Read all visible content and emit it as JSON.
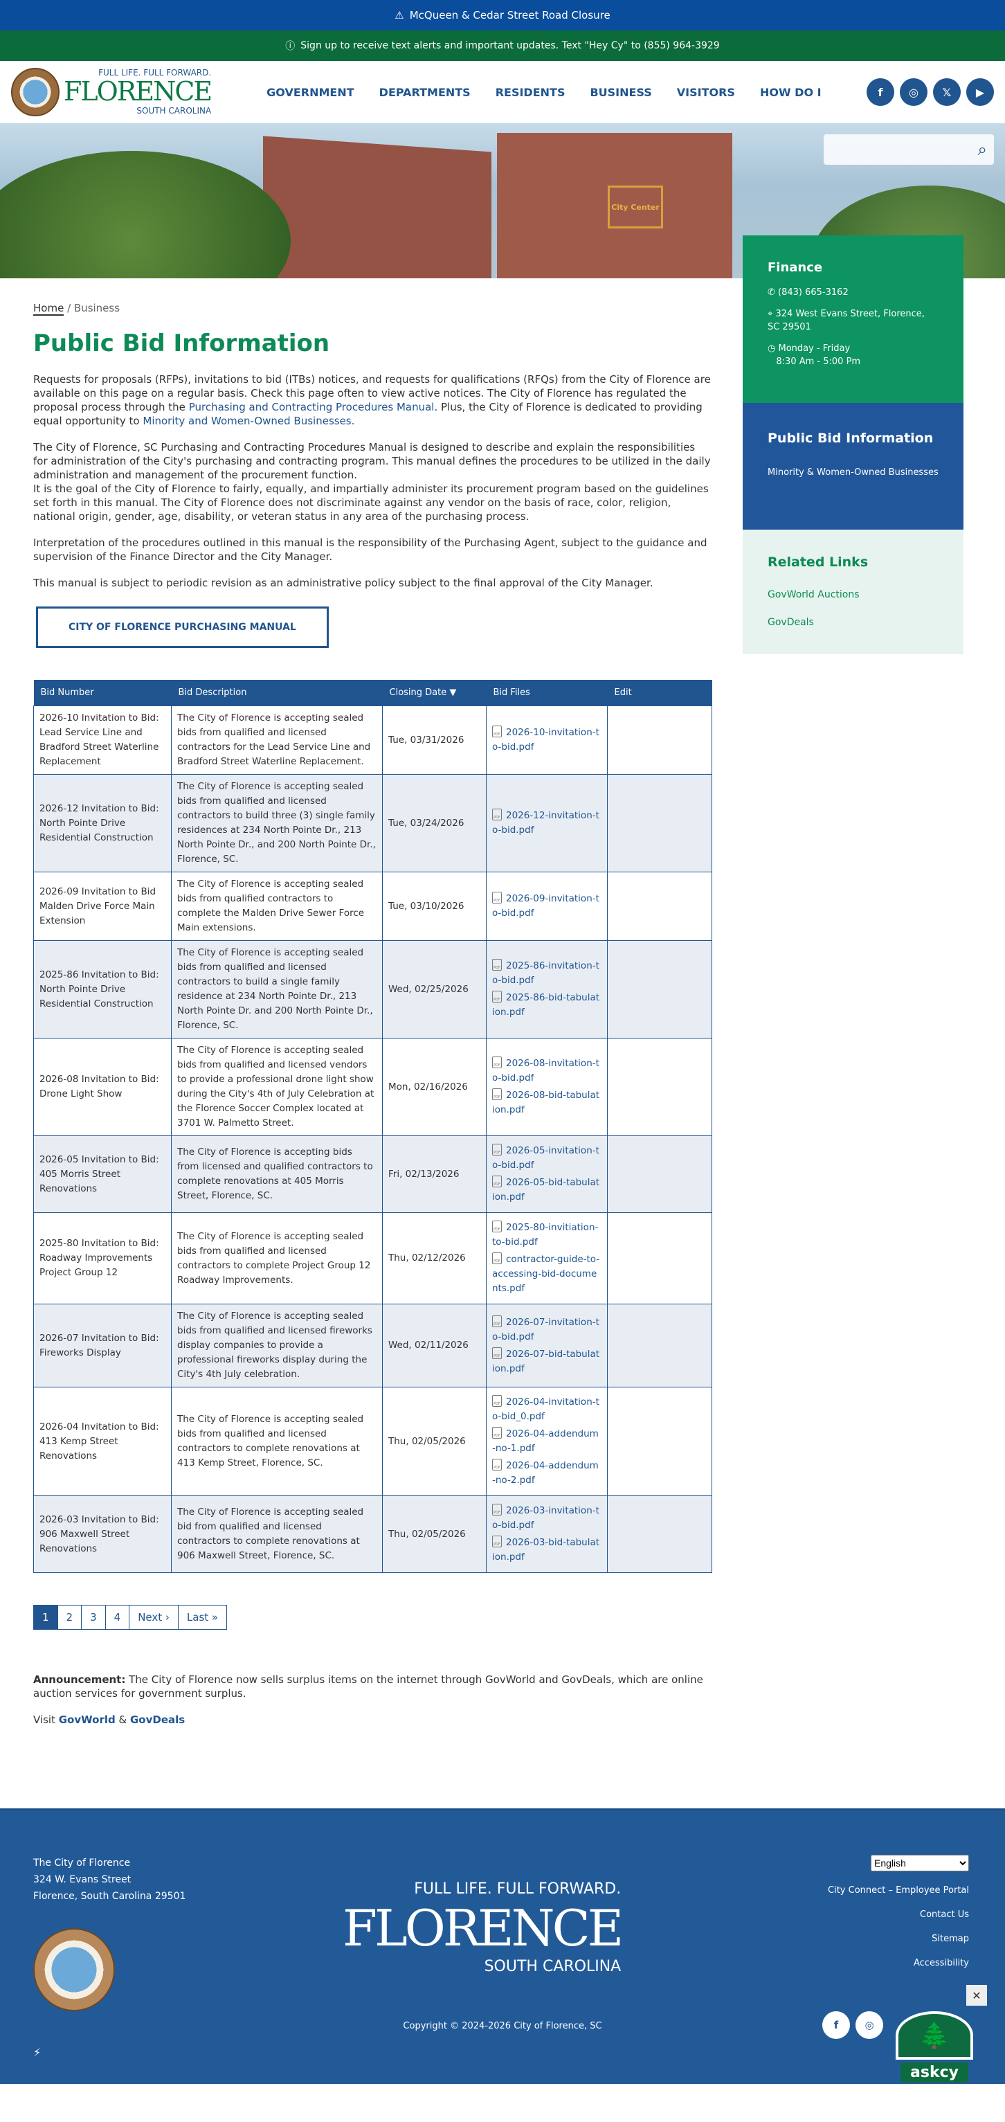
{
  "alerts": {
    "road": "McQueen & Cedar Street Road Closure",
    "text": "Sign up to receive text alerts and important updates. Text \"Hey Cy\" to (855) 964-3929"
  },
  "logo": {
    "tagline": "FULL LIFE. FULL FORWARD.",
    "name": "FLORENCE",
    "state": "SOUTH CAROLINA"
  },
  "nav": [
    "GOVERNMENT",
    "DEPARTMENTS",
    "RESIDENTS",
    "BUSINESS",
    "VISITORS",
    "HOW DO I"
  ],
  "social": {
    "facebook": "f",
    "instagram": "◎",
    "x": "𝕏",
    "youtube": "▶"
  },
  "hero": {
    "sign": "City Center"
  },
  "breadcrumb": {
    "home": "Home",
    "current": "Business"
  },
  "title": "Public Bid Information",
  "intro": {
    "p1a": "Requests for proposals (RFPs), invitations to bid (ITBs) notices, and requests for qualifications (RFQs) from the City of Florence are available on this page on a regular basis. Check this page often to view active notices. The City of Florence has regulated the proposal process through the ",
    "link1": "Purchasing and Contracting Procedures Manual",
    "p1b": ". Plus, the City of Florence is dedicated to providing equal opportunity to ",
    "link2": "Minority and Women-Owned Businesses.",
    "p2": "The City of Florence, SC Purchasing and Contracting Procedures Manual is designed to describe and explain the responsibilities for administration of the City's purchasing and contracting program.  This manual defines the procedures to be utilized in the daily administration and management of the procurement function.",
    "p3": "It is the goal of the City of Florence to fairly, equally, and impartially administer its procurement program based on the guidelines set forth in this manual.  The City of Florence does not discriminate against any vendor on the basis of race, color, religion, national origin, gender, age, disability, or veteran status in any area of the purchasing process.",
    "p4": "Interpretation of the procedures outlined in this manual is the responsibility of the Purchasing Agent, subject to the guidance and supervision of the Finance Director and the City Manager.",
    "p5": "This manual is subject to periodic revision as an administrative policy subject to the final approval of the City Manager."
  },
  "manual_button": "CITY OF FLORENCE PURCHASING MANUAL",
  "table": {
    "headers": [
      "Bid Number",
      "Bid Description",
      "Closing Date ▼",
      "Bid Files",
      "Edit"
    ],
    "rows": [
      {
        "number": "2026-10 Invitation to Bid: Lead Service Line and Bradford Street Waterline Replacement",
        "desc": "The City of Florence is accepting sealed bids from qualified and licensed contractors for the Lead Service Line and Bradford Street Waterline Replacement.",
        "date": "Tue, 03/31/2026",
        "files": [
          "2026-10-invitation-to-bid.pdf"
        ]
      },
      {
        "number": "2026-12 Invitation to Bid: North Pointe Drive Residential Construction",
        "desc": "The City of Florence is accepting sealed bids from qualified and licensed contractors to build three (3) single family residences at 234 North Pointe Dr., 213 North Pointe Dr., and 200 North Pointe Dr., Florence, SC.",
        "date": "Tue, 03/24/2026",
        "files": [
          "2026-12-invitation-to-bid.pdf"
        ]
      },
      {
        "number": "2026-09 Invitation to Bid Malden Drive Force Main Extension",
        "desc": "The City of Florence is accepting sealed bids from qualified contractors to complete the Malden Drive Sewer Force Main extensions.",
        "date": "Tue, 03/10/2026",
        "files": [
          "2026-09-invitation-to-bid.pdf"
        ]
      },
      {
        "number": "2025-86 Invitation to Bid: North Pointe Drive Residential Construction",
        "desc": "The City of Florence is accepting sealed bids from qualified and licensed contractors to build a single family residence at 234 North Pointe Dr., 213 North Pointe Dr. and 200 North Pointe Dr., Florence, SC.",
        "date": "Wed, 02/25/2026",
        "files": [
          "2025-86-invitation-to-bid.pdf",
          "2025-86-bid-tabulation.pdf"
        ]
      },
      {
        "number": "2026-08 Invitation to Bid: Drone Light Show",
        "desc": "The City of Florence is accepting sealed bids from qualified and licensed vendors to provide a professional drone light show during the City's 4th of July Celebration at the Florence Soccer Complex located at 3701 W. Palmetto Street.",
        "date": "Mon, 02/16/2026",
        "files": [
          "2026-08-invitation-to-bid.pdf",
          "2026-08-bid-tabulation.pdf"
        ]
      },
      {
        "number": "2026-05 Invitation to Bid: 405 Morris Street Renovations",
        "desc": "The City of Florence is accepting bids from licensed and qualified contractors to complete renovations at 405 Morris Street, Florence, SC.",
        "date": "Fri, 02/13/2026",
        "files": [
          "2026-05-invitation-to-bid.pdf",
          "2026-05-bid-tabulation.pdf"
        ]
      },
      {
        "number": "2025-80 Invitation to Bid: Roadway Improvements Project Group 12",
        "desc": "The City of Florence is accepting sealed bids from qualified and licensed contractors to  complete Project Group 12 Roadway Improvements.",
        "date": "Thu, 02/12/2026",
        "files": [
          "2025-80-invitiation-to-bid.pdf",
          "contractor-guide-to-accessing-bid-documents.pdf"
        ]
      },
      {
        "number": "2026-07 Invitation to Bid: Fireworks Display",
        "desc": "The City of Florence is accepting sealed bids from qualified and licensed fireworks display companies to provide a professional fireworks display during the City's 4th July celebration.",
        "date": "Wed, 02/11/2026",
        "files": [
          "2026-07-invitation-to-bid.pdf",
          "2026-07-bid-tabulation.pdf"
        ]
      },
      {
        "number": "2026-04 Invitation to Bid: 413 Kemp Street Renovations",
        "desc": "The City of Florence is accepting sealed bids from qualified and licensed contractors to complete renovations at 413 Kemp Street, Florence, SC.",
        "date": "Thu, 02/05/2026",
        "files": [
          "2026-04-invitation-to-bid_0.pdf",
          "2026-04-addendum-no-1.pdf",
          "2026-04-addendum-no-2.pdf"
        ]
      },
      {
        "number": "2026-03 Invitation to Bid: 906 Maxwell Street Renovations",
        "desc": "The City of Florence is accepting sealed bid from qualified and licensed contractors to complete renovations at 906 Maxwell Street, Florence, SC.",
        "date": "Thu, 02/05/2026",
        "files": [
          "2026-03-invitation-to-bid.pdf",
          "2026-03-bid-tabulation.pdf"
        ]
      }
    ]
  },
  "pager": [
    "1",
    "2",
    "3",
    "4",
    "Next ›",
    "Last »"
  ],
  "pager_current": "1",
  "announcement": {
    "label": "Announcement:",
    "text": " The City of Florence now sells surplus items on the internet through GovWorld and GovDeals, which are online auction services for government surplus.",
    "visit": "Visit ",
    "link1": "GovWorld",
    "amp": " & ",
    "link2": "GovDeals"
  },
  "sidebar": {
    "finance": {
      "title": "Finance",
      "phone": "(843) 665-3162",
      "address": "324 West Evans Street, Florence, SC 29501",
      "hours1": "Monday - Friday",
      "hours2": "8:30 Am - 5:00 Pm"
    },
    "pbi": {
      "title": "Public Bid Information",
      "link": "Minority & Women-Owned Businesses"
    },
    "related": {
      "title": "Related Links",
      "links": [
        "GovWorld Auctions",
        "GovDeals"
      ]
    }
  },
  "footer": {
    "line1": "The City of Florence",
    "line2": "324 W. Evans Street",
    "line3": "Florence, South Carolina 29501",
    "language": "English",
    "links": [
      "City Connect – Employee Portal",
      "Contact Us",
      "Sitemap",
      "Accessibility"
    ],
    "copyright": "Copyright © 2024-2026 City of Florence, SC",
    "askcy": "askcy"
  },
  "colors": {
    "blue": "#21558f",
    "green": "#0d8a56",
    "alert_blue": "#0a4d9c",
    "alert_green": "#0c6b3a"
  }
}
